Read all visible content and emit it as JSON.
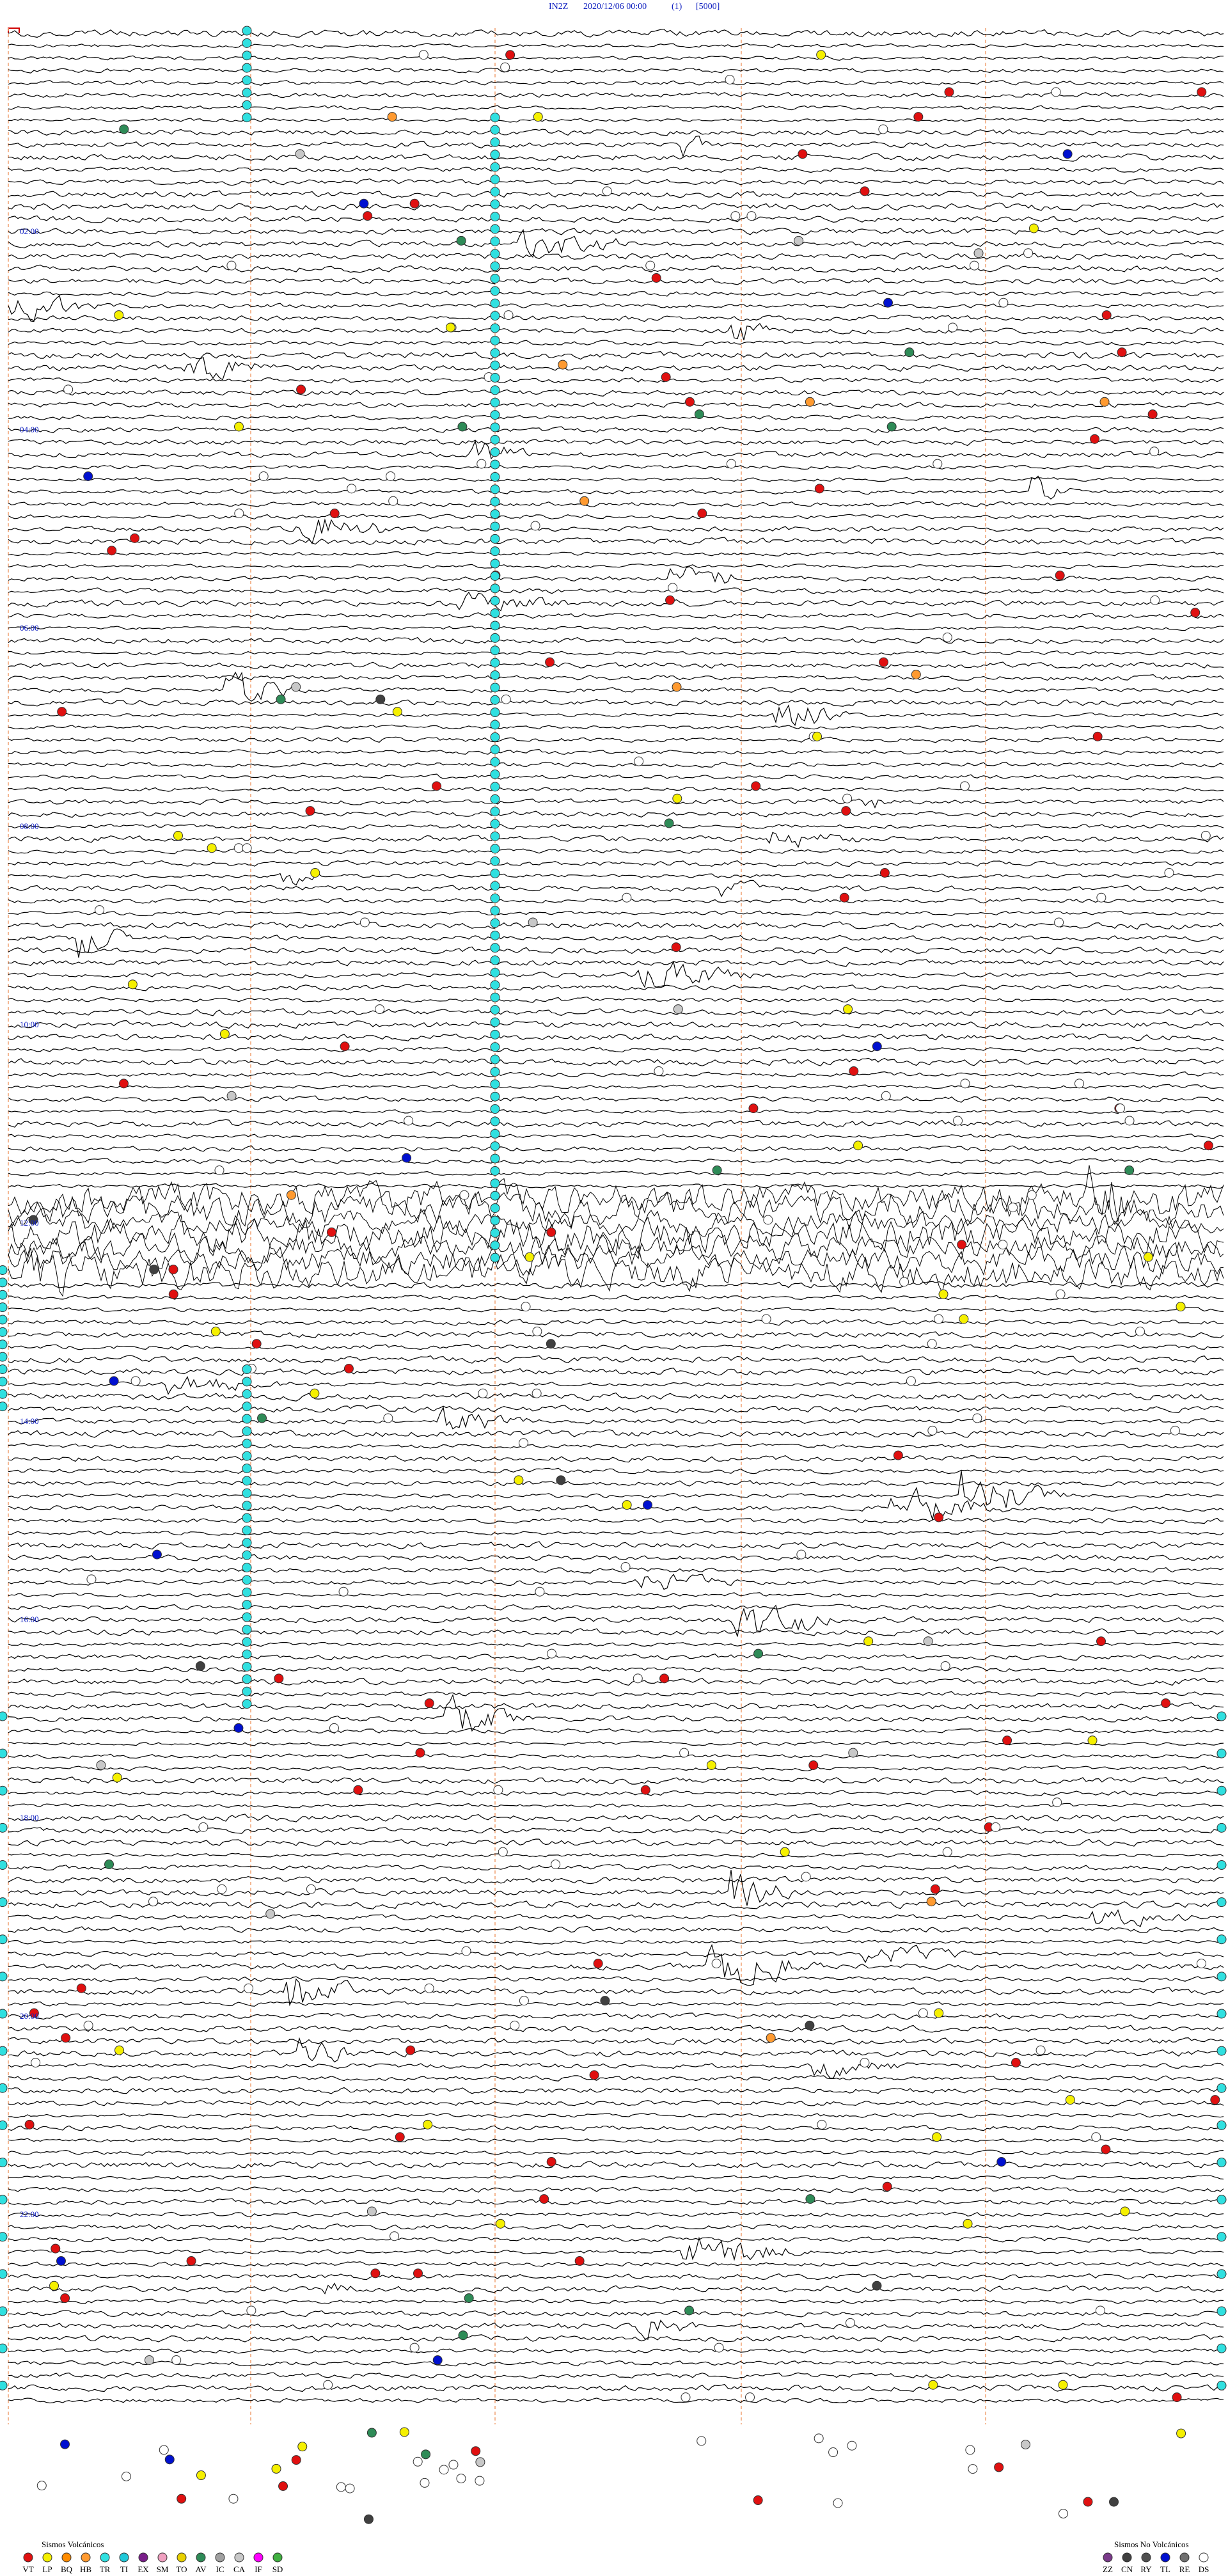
{
  "header": {
    "station": "IN2Z",
    "datetime": "2020/12/06 00:00",
    "channel": "(1)",
    "scale": "[5000]"
  },
  "time_labels": [
    "02:00",
    "04:00",
    "06:00",
    "08:00",
    "10:00",
    "12:00",
    "14:00",
    "16:00",
    "18:00",
    "20:00",
    "22:00"
  ],
  "legend_volcanic": {
    "title": "Sismos Volcánicos",
    "items": [
      {
        "code": "VT",
        "color": "#e01010"
      },
      {
        "code": "LP",
        "color": "#f5f000"
      },
      {
        "code": "BQ",
        "color": "#ff8c00"
      },
      {
        "code": "HB",
        "color": "#ff9a30"
      },
      {
        "code": "TR",
        "color": "#30e0e0"
      },
      {
        "code": "TI",
        "color": "#20c8d8"
      },
      {
        "code": "EX",
        "color": "#7a1f8a"
      },
      {
        "code": "SM",
        "color": "#f0a0c0"
      },
      {
        "code": "TO",
        "color": "#e8d000"
      },
      {
        "code": "AV",
        "color": "#2e8b57"
      },
      {
        "code": "IC",
        "color": "#a0a0a0"
      },
      {
        "code": "CA",
        "color": "#c8c8c8"
      },
      {
        "code": "IF",
        "color": "#ff00ff"
      },
      {
        "code": "SD",
        "color": "#40b040"
      }
    ]
  },
  "legend_non_volcanic": {
    "title": "Sismos No Volcánicos",
    "items": [
      {
        "code": "ZZ",
        "color": "#7a3a8a"
      },
      {
        "code": "CN",
        "color": "#404040"
      },
      {
        "code": "RY",
        "color": "#505050"
      },
      {
        "code": "TL",
        "color": "#0010d0"
      },
      {
        "code": "RE",
        "color": "#707070"
      },
      {
        "code": "DS",
        "color": "#ffffff"
      }
    ]
  }
}
